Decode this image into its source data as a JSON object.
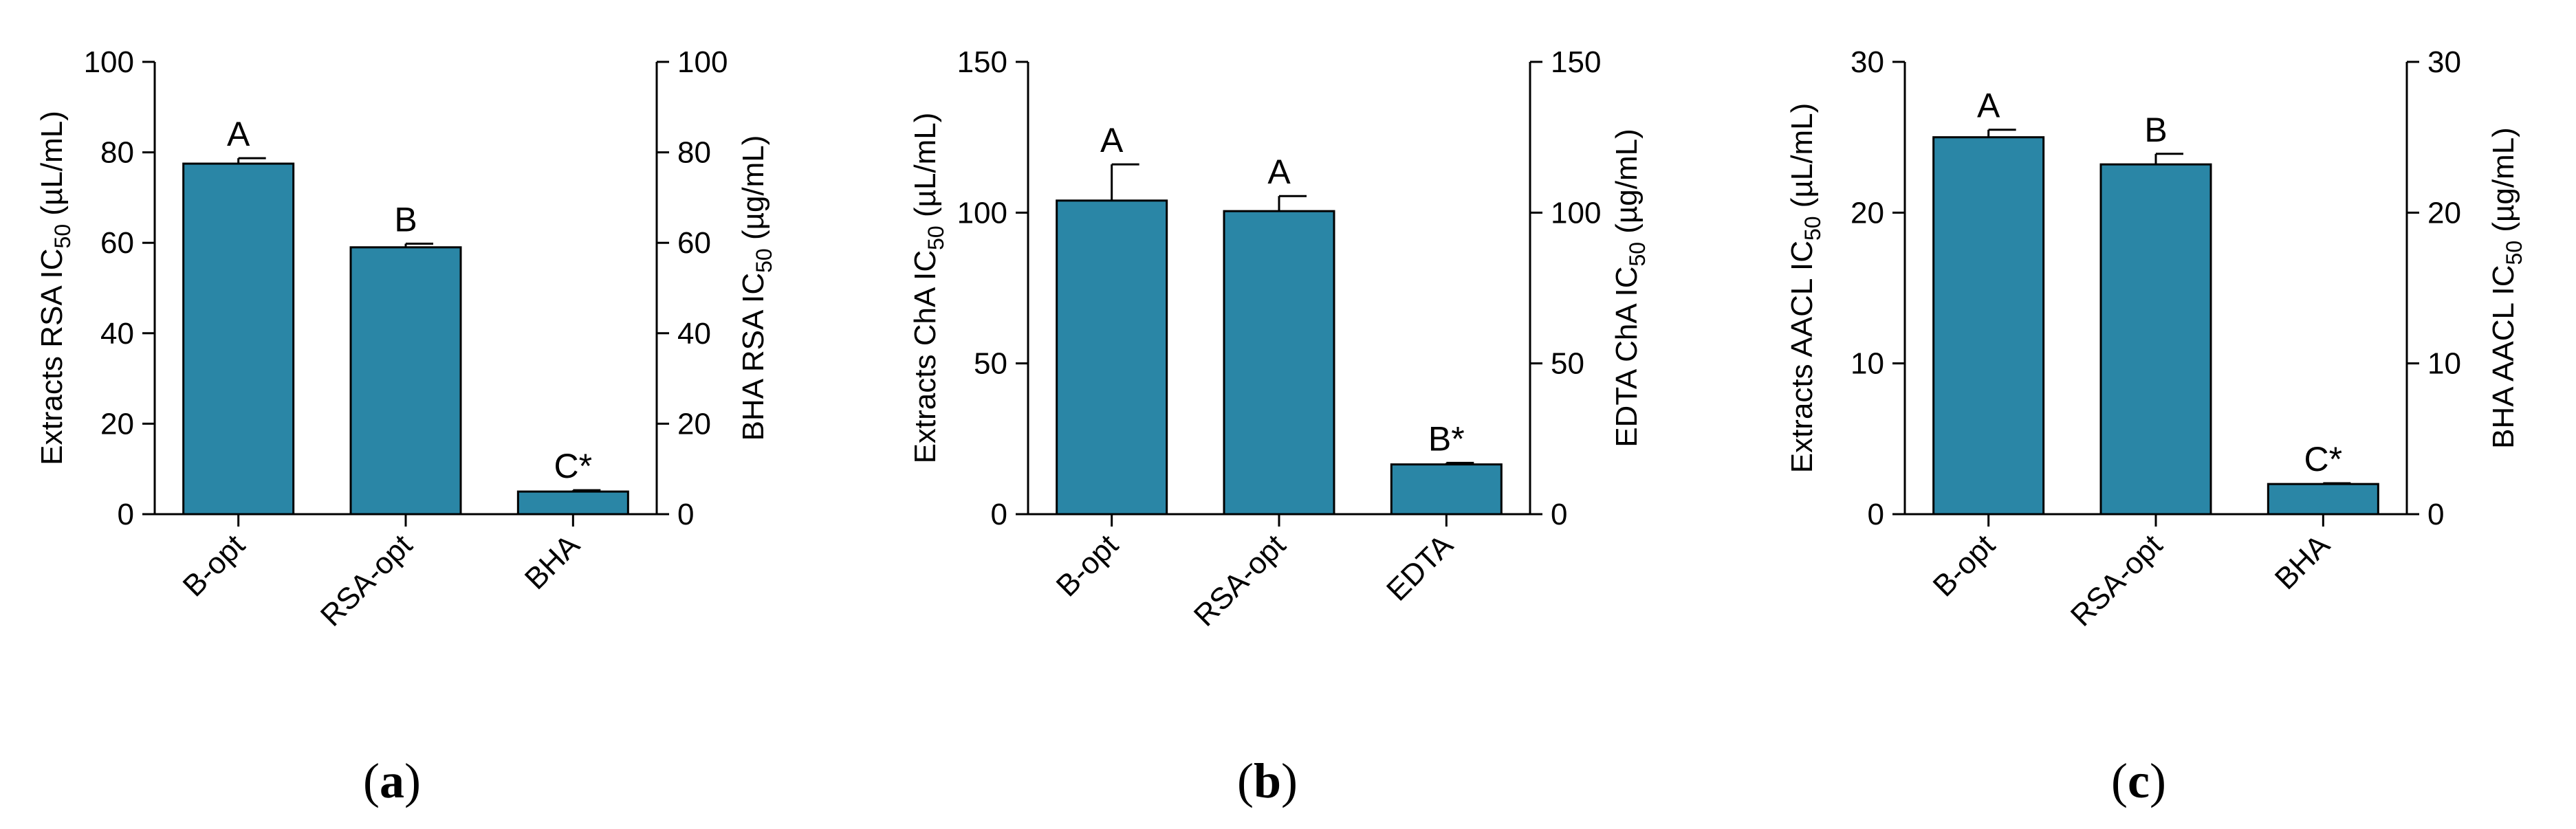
{
  "colors": {
    "bar": "#2A86A6",
    "axis": "#000000",
    "background": "#FFFFFF"
  },
  "chart_data": [
    {
      "type": "bar",
      "panel_label": {
        "open": "(",
        "letter": "a",
        "close": ")"
      },
      "categories": [
        "B-opt",
        "RSA-opt",
        "BHA"
      ],
      "values": [
        77.5,
        59,
        5
      ],
      "errors": [
        1.2,
        0.8,
        0.3
      ],
      "significance": [
        "A",
        "B",
        "C*"
      ],
      "ylabel": {
        "prefix": "Extracts RSA IC",
        "sub": "50",
        "suffix": " (µL/mL)"
      },
      "ylabel_right": {
        "prefix": "BHA RSA IC",
        "sub": "50",
        "suffix": " (µg/mL)"
      },
      "ylim": [
        0,
        100
      ],
      "yticks": [
        0,
        20,
        40,
        60,
        80,
        100
      ],
      "grid": false
    },
    {
      "type": "bar",
      "panel_label": {
        "open": "(",
        "letter": "b",
        "close": ")"
      },
      "categories": [
        "B-opt",
        "RSA-opt",
        "EDTA"
      ],
      "values": [
        104,
        100.5,
        16.5
      ],
      "errors": [
        12,
        5,
        0.5
      ],
      "significance": [
        "A",
        "A",
        "B*"
      ],
      "ylabel": {
        "prefix": "Extracts ChA IC",
        "sub": "50",
        "suffix": " (µL/mL)"
      },
      "ylabel_right": {
        "prefix": "EDTA ChA IC",
        "sub": "50",
        "suffix": " (µg/mL)"
      },
      "ylim": [
        0,
        150
      ],
      "yticks": [
        0,
        50,
        100,
        150
      ],
      "grid": false
    },
    {
      "type": "bar",
      "panel_label": {
        "open": "(",
        "letter": "c",
        "close": ")"
      },
      "categories": [
        "B-opt",
        "RSA-opt",
        "BHA"
      ],
      "values": [
        25,
        23.2,
        2
      ],
      "errors": [
        0.5,
        0.7,
        0.05
      ],
      "significance": [
        "A",
        "B",
        "C*"
      ],
      "ylabel": {
        "prefix": "Extracts AACL  IC",
        "sub": "50",
        "suffix": " (µL/mL)"
      },
      "ylabel_right": {
        "prefix": "BHA AACL IC",
        "sub": "50",
        "suffix": " (µg/mL)"
      },
      "ylim": [
        0,
        30
      ],
      "yticks": [
        0,
        10,
        20,
        30
      ],
      "grid": false
    }
  ]
}
